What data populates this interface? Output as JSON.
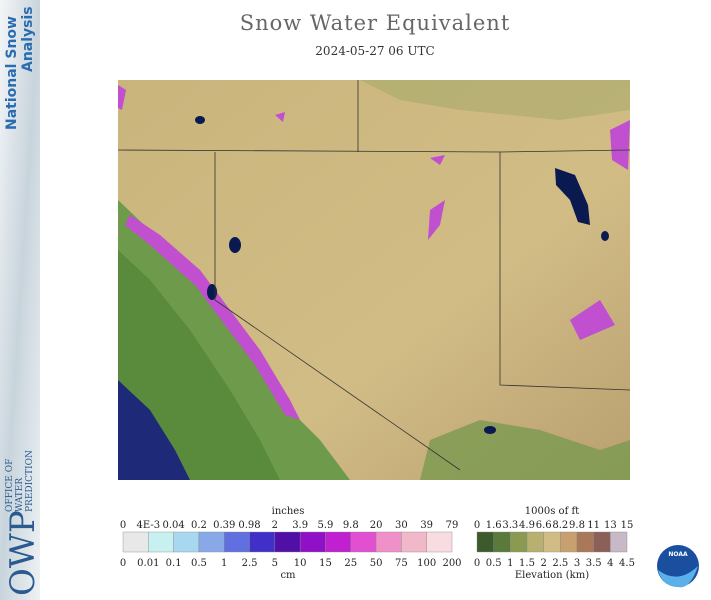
{
  "sidebar": {
    "title_lines": [
      "National Snow",
      "Analysis"
    ],
    "logo": "OWP",
    "office_lines": [
      "OFFICE OF",
      "WATER",
      "PREDICTION"
    ]
  },
  "header": {
    "title": "Snow Water Equivalent",
    "subtitle": "2024-05-27 06 UTC"
  },
  "swe_legend": {
    "unit_top": "inches",
    "unit_bottom": "cm",
    "labels_top": [
      "0",
      "4E-3",
      "0.04",
      "0.2",
      "0.39",
      "0.98",
      "2",
      "3.9",
      "5.9",
      "9.8",
      "20",
      "30",
      "39",
      "79"
    ],
    "labels_bottom": [
      "0",
      "0.01",
      "0.1",
      "0.5",
      "1",
      "2.5",
      "5",
      "10",
      "15",
      "25",
      "50",
      "75",
      "100",
      "200"
    ],
    "colors": [
      "#e8e8e8",
      "#c8f0f0",
      "#a8d8f0",
      "#88a8e8",
      "#6070e0",
      "#4030c8",
      "#5010a8",
      "#9010c8",
      "#c020d0",
      "#e050d0",
      "#f090c8",
      "#f0b8c8",
      "#f8dce0"
    ]
  },
  "elevation_legend": {
    "unit_top": "1000s of ft",
    "unit_bottom": "Elevation (km)",
    "labels_top": [
      "0",
      "1.6",
      "3.3",
      "4.9",
      "6.6",
      "8.2",
      "9.8",
      "11",
      "13",
      "15"
    ],
    "labels_bottom": [
      "0",
      "0.5",
      "1",
      "1.5",
      "2",
      "2.5",
      "3",
      "3.5",
      "4",
      "4.5"
    ],
    "colors": [
      "#3c5a2c",
      "#5a7a3c",
      "#8a9a50",
      "#b8b070",
      "#d0bc84",
      "#c8a070",
      "#a87858",
      "#8a6058",
      "#c8b8c8"
    ]
  },
  "noaa": "NOAA"
}
